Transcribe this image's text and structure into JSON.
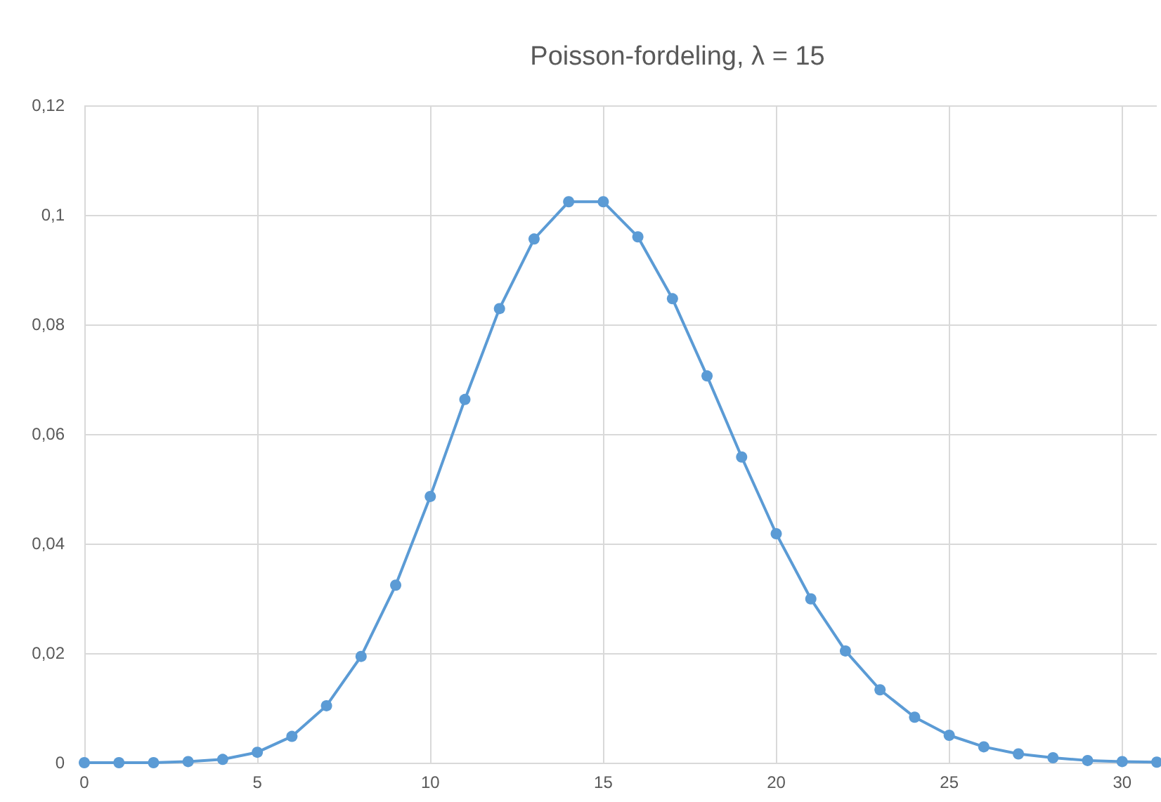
{
  "chart_data": {
    "type": "line",
    "title": "Poisson-fordeling, λ = 15",
    "x": [
      0,
      1,
      2,
      3,
      4,
      5,
      6,
      7,
      8,
      9,
      10,
      11,
      12,
      13,
      14,
      15,
      16,
      17,
      18,
      19,
      20,
      21,
      22,
      23,
      24,
      25,
      26,
      27,
      28,
      29,
      30,
      31
    ],
    "series": [
      {
        "color": "#5b9bd5",
        "values": [
          0,
          0,
          0,
          0.0002,
          0.0006,
          0.0019,
          0.0048,
          0.0104,
          0.0194,
          0.0324,
          0.0486,
          0.0663,
          0.0829,
          0.0956,
          0.1024,
          0.1024,
          0.096,
          0.0847,
          0.0706,
          0.0558,
          0.0418,
          0.0299,
          0.0204,
          0.0133,
          0.0083,
          0.005,
          0.0029,
          0.0016,
          0.0009,
          0.0004,
          0.0002,
          0.0001
        ]
      }
    ],
    "xlim": [
      0,
      31
    ],
    "xticks": [
      0,
      5,
      10,
      15,
      20,
      25,
      30
    ],
    "ylim": [
      0,
      0.12
    ],
    "yticks": [
      {
        "value": 0,
        "label": "0"
      },
      {
        "value": 0.02,
        "label": "0,02"
      },
      {
        "value": 0.04,
        "label": "0,04"
      },
      {
        "value": 0.06,
        "label": "0,06"
      },
      {
        "value": 0.08,
        "label": "0,08"
      },
      {
        "value": 0.1,
        "label": "0,1"
      },
      {
        "value": 0.12,
        "label": "0,12"
      }
    ],
    "grid": true,
    "marker": "circle",
    "line_style": "solid"
  }
}
